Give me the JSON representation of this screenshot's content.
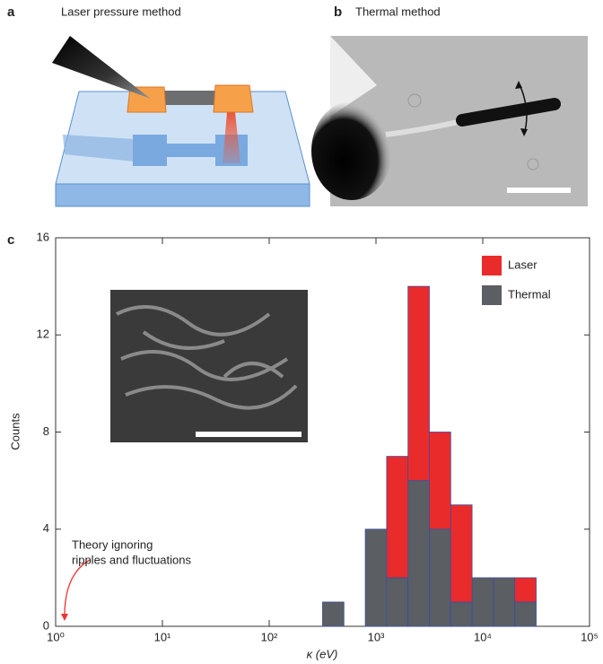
{
  "panels": [
    {
      "label": "a",
      "title": "Laser pressure method"
    },
    {
      "label": "b",
      "title": "Thermal method"
    }
  ],
  "chart_data": {
    "type": "histogram",
    "panel_label": "c",
    "xlabel": "κ (eV)",
    "ylabel": "Counts",
    "annotation": [
      "Theory ignoring",
      "ripples and fluctuations"
    ],
    "bins": [
      316,
      501,
      794,
      1259,
      1995,
      3162,
      5012,
      7943,
      12589,
      19953,
      31623
    ],
    "series": [
      {
        "name": "Thermal",
        "color": "#5b5e63",
        "values": [
          1,
          0,
          4,
          2,
          6,
          4,
          1,
          2,
          2,
          1
        ]
      },
      {
        "name": "Laser",
        "color": "#ea2b2b",
        "values": [
          0,
          0,
          0,
          5,
          8,
          4,
          4,
          0,
          0,
          1
        ]
      }
    ],
    "stacked": true,
    "xscale": "log",
    "xlim": [
      1,
      100000
    ],
    "xticks": [
      {
        "value": 1,
        "label": "10⁰"
      },
      {
        "value": 10,
        "label": "10¹"
      },
      {
        "value": 100,
        "label": "10²"
      },
      {
        "value": 1000,
        "label": "10³"
      },
      {
        "value": 10000,
        "label": "10⁴"
      },
      {
        "value": 100000,
        "label": "10⁵"
      }
    ],
    "ylim": [
      0,
      16
    ],
    "yticks": [
      0,
      4,
      8,
      12,
      16
    ],
    "legend": "upper right"
  }
}
